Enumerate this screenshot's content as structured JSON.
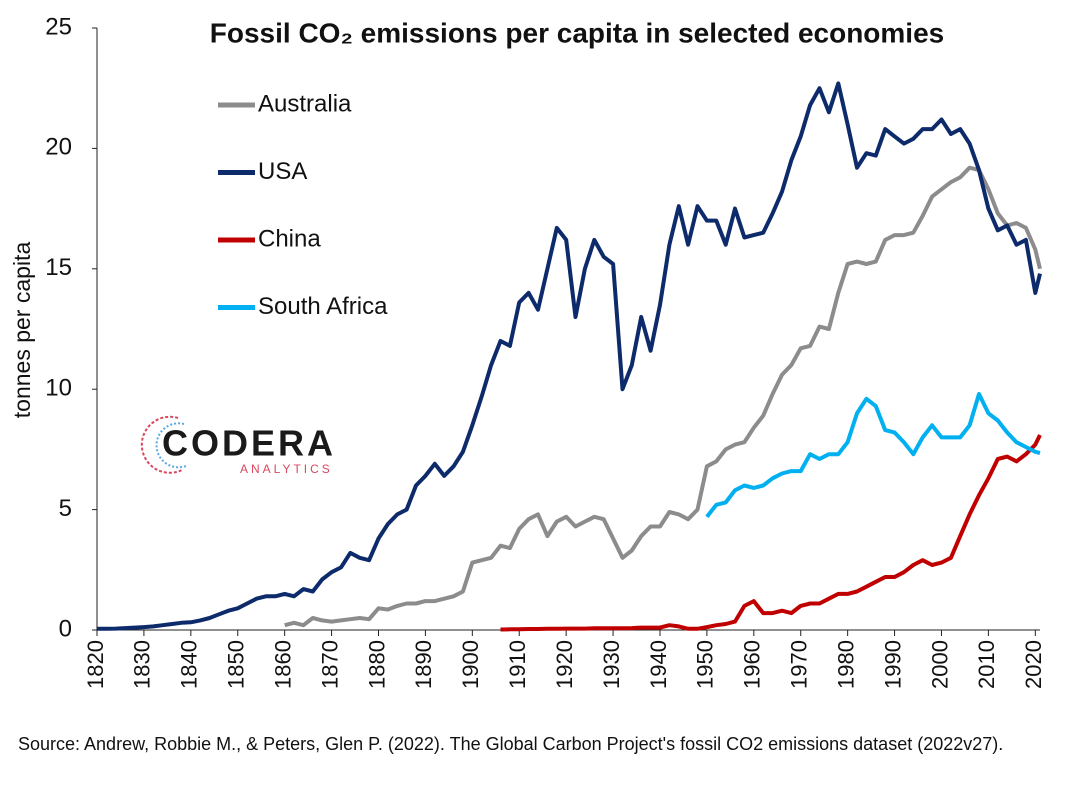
{
  "chart_data": {
    "type": "line",
    "title": "Fossil CO₂ emissions per capita in selected economies",
    "y_label": "tonnes per capita",
    "source": "Source: Andrew, Robbie M., & Peters, Glen P. (2022). The Global Carbon Project's fossil CO2 emissions dataset (2022v27).",
    "logo": {
      "name": "CODERA",
      "sub": "ANALYTICS"
    },
    "xlim": [
      1820,
      2021
    ],
    "xticks": [
      1820,
      1830,
      1840,
      1850,
      1860,
      1870,
      1880,
      1890,
      1900,
      1910,
      1920,
      1930,
      1940,
      1950,
      1960,
      1970,
      1980,
      1990,
      2000,
      2010,
      2020
    ],
    "ylim": [
      0,
      25
    ],
    "yticks": [
      0,
      5,
      10,
      15,
      20,
      25
    ],
    "legend": "upper-left",
    "x": [
      1820,
      1822,
      1824,
      1826,
      1828,
      1830,
      1832,
      1834,
      1836,
      1838,
      1840,
      1842,
      1844,
      1846,
      1848,
      1850,
      1852,
      1854,
      1856,
      1858,
      1860,
      1862,
      1864,
      1866,
      1868,
      1870,
      1872,
      1874,
      1876,
      1878,
      1880,
      1882,
      1884,
      1886,
      1888,
      1890,
      1892,
      1894,
      1896,
      1898,
      1900,
      1902,
      1904,
      1906,
      1908,
      1910,
      1912,
      1914,
      1916,
      1918,
      1920,
      1922,
      1924,
      1926,
      1928,
      1930,
      1932,
      1934,
      1936,
      1938,
      1940,
      1942,
      1944,
      1946,
      1948,
      1950,
      1952,
      1954,
      1956,
      1958,
      1960,
      1962,
      1964,
      1966,
      1968,
      1970,
      1972,
      1974,
      1976,
      1978,
      1980,
      1982,
      1984,
      1986,
      1988,
      1990,
      1992,
      1994,
      1996,
      1998,
      2000,
      2002,
      2004,
      2006,
      2008,
      2010,
      2012,
      2014,
      2016,
      2018,
      2020,
      2021
    ],
    "series": [
      {
        "name": "Australia",
        "color": "#8c8c8c",
        "values": [
          null,
          null,
          null,
          null,
          null,
          null,
          null,
          null,
          null,
          null,
          null,
          null,
          null,
          null,
          null,
          null,
          null,
          null,
          null,
          null,
          0.2,
          0.3,
          0.2,
          0.5,
          0.4,
          0.35,
          0.4,
          0.45,
          0.5,
          0.45,
          0.9,
          0.85,
          1.0,
          1.1,
          1.1,
          1.2,
          1.2,
          1.3,
          1.4,
          1.6,
          2.8,
          2.9,
          3.0,
          3.5,
          3.4,
          4.2,
          4.6,
          4.8,
          3.9,
          4.5,
          4.7,
          4.3,
          4.5,
          4.7,
          4.6,
          3.8,
          3.0,
          3.3,
          3.9,
          4.3,
          4.3,
          4.9,
          4.8,
          4.6,
          5.0,
          6.8,
          7.0,
          7.5,
          7.7,
          7.8,
          8.4,
          8.9,
          9.8,
          10.6,
          11.0,
          11.7,
          11.8,
          12.6,
          12.5,
          14.0,
          15.2,
          15.3,
          15.2,
          15.3,
          16.2,
          16.4,
          16.4,
          16.5,
          17.2,
          18.0,
          18.3,
          18.6,
          18.8,
          19.2,
          19.1,
          18.3,
          17.3,
          16.8,
          16.9,
          16.7,
          15.8,
          15.0
        ]
      },
      {
        "name": "USA",
        "color": "#0d2a6b",
        "values": [
          0.05,
          0.05,
          0.06,
          0.08,
          0.1,
          0.12,
          0.15,
          0.2,
          0.25,
          0.3,
          0.32,
          0.4,
          0.5,
          0.65,
          0.8,
          0.9,
          1.1,
          1.3,
          1.4,
          1.4,
          1.5,
          1.4,
          1.7,
          1.6,
          2.1,
          2.4,
          2.6,
          3.2,
          3.0,
          2.9,
          3.8,
          4.4,
          4.8,
          5.0,
          6.0,
          6.4,
          6.9,
          6.4,
          6.8,
          7.4,
          8.5,
          9.7,
          11.0,
          12.0,
          11.8,
          13.6,
          14.0,
          13.3,
          15.0,
          16.7,
          16.2,
          13.0,
          15.0,
          16.2,
          15.5,
          15.2,
          10.0,
          11.0,
          13.0,
          11.6,
          13.5,
          16.0,
          17.6,
          16.0,
          17.6,
          17.0,
          17.0,
          16.0,
          17.5,
          16.3,
          16.4,
          16.5,
          17.3,
          18.2,
          19.5,
          20.5,
          21.8,
          22.5,
          21.5,
          22.7,
          21.0,
          19.2,
          19.8,
          19.7,
          20.8,
          20.5,
          20.2,
          20.4,
          20.8,
          20.8,
          21.2,
          20.6,
          20.8,
          20.2,
          19.1,
          17.5,
          16.6,
          16.8,
          16.0,
          16.2,
          14.0,
          14.8
        ]
      },
      {
        "name": "China",
        "color": "#c00000",
        "values": [
          null,
          null,
          null,
          null,
          null,
          null,
          null,
          null,
          null,
          null,
          null,
          null,
          null,
          null,
          null,
          null,
          null,
          null,
          null,
          null,
          null,
          null,
          null,
          null,
          null,
          null,
          null,
          null,
          null,
          null,
          null,
          null,
          null,
          null,
          null,
          null,
          null,
          null,
          null,
          null,
          null,
          null,
          null,
          0.02,
          0.03,
          0.03,
          0.04,
          0.04,
          0.05,
          0.05,
          0.06,
          0.06,
          0.06,
          0.07,
          0.07,
          0.07,
          0.07,
          0.08,
          0.1,
          0.1,
          0.1,
          0.2,
          0.15,
          0.05,
          0.05,
          0.12,
          0.2,
          0.25,
          0.35,
          1.0,
          1.2,
          0.7,
          0.7,
          0.8,
          0.7,
          1.0,
          1.1,
          1.1,
          1.3,
          1.5,
          1.5,
          1.6,
          1.8,
          2.0,
          2.2,
          2.2,
          2.4,
          2.7,
          2.9,
          2.7,
          2.8,
          3.0,
          3.9,
          4.8,
          5.6,
          6.3,
          7.1,
          7.2,
          7.0,
          7.3,
          7.7,
          8.1
        ]
      },
      {
        "name": "South Africa",
        "color": "#00b0f0",
        "values": [
          null,
          null,
          null,
          null,
          null,
          null,
          null,
          null,
          null,
          null,
          null,
          null,
          null,
          null,
          null,
          null,
          null,
          null,
          null,
          null,
          null,
          null,
          null,
          null,
          null,
          null,
          null,
          null,
          null,
          null,
          null,
          null,
          null,
          null,
          null,
          null,
          null,
          null,
          null,
          null,
          null,
          null,
          null,
          null,
          null,
          null,
          null,
          null,
          null,
          null,
          null,
          null,
          null,
          null,
          null,
          null,
          null,
          null,
          null,
          null,
          null,
          null,
          null,
          null,
          null,
          4.7,
          5.2,
          5.3,
          5.8,
          6.0,
          5.9,
          6.0,
          6.3,
          6.5,
          6.6,
          6.6,
          7.3,
          7.1,
          7.3,
          7.3,
          7.8,
          9.0,
          9.6,
          9.3,
          8.3,
          8.2,
          7.8,
          7.3,
          8.0,
          8.5,
          8.0,
          8.0,
          8.0,
          8.5,
          9.8,
          9.0,
          8.7,
          8.2,
          7.8,
          7.6,
          7.4,
          7.35
        ]
      }
    ]
  }
}
